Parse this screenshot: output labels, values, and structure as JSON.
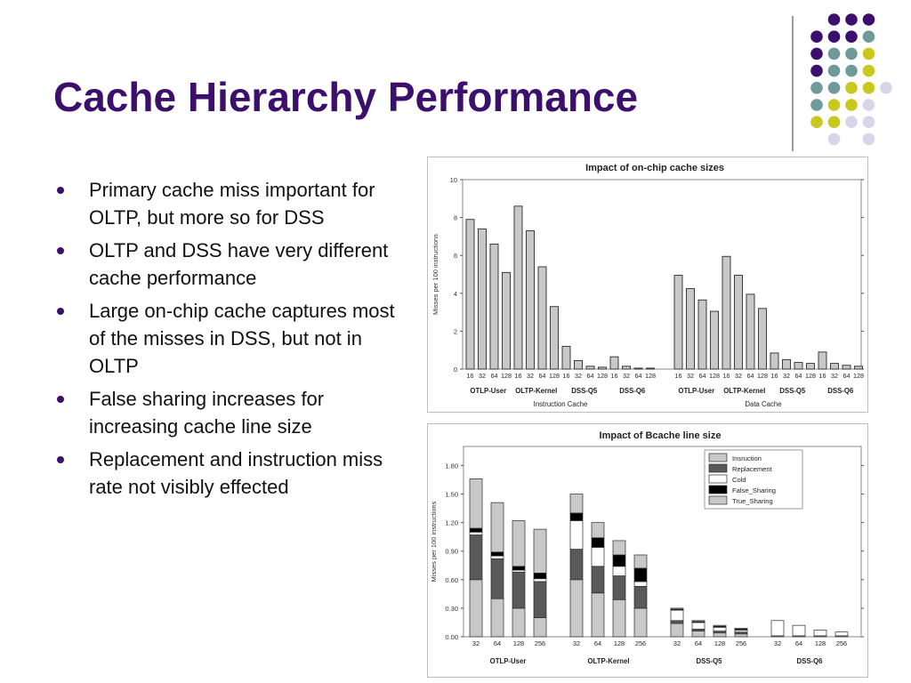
{
  "slide": {
    "title": "Cache Hierarchy Performance",
    "bullets": [
      "Primary cache miss important for OLTP, but more so for DSS",
      "OLTP and DSS have very different cache performance",
      "Large on-chip cache captures most of the misses in DSS, but not in OLTP",
      "False sharing increases for increasing cache line size",
      "Replacement and instruction miss rate not visibly effected"
    ],
    "colors": {
      "title": "#3b0f6b",
      "dot_purple": "#3b0f6b",
      "dot_teal": "#6e9a9a",
      "dot_yellow": "#c8c81e",
      "dot_lavender": "#d6d6e8"
    }
  },
  "chart_data": [
    {
      "type": "bar",
      "title": "Impact of on-chip cache sizes",
      "ylabel": "Misses per 100 instructions",
      "ylim": [
        0,
        10
      ],
      "yticks": [
        0,
        2,
        4,
        6,
        8,
        10
      ],
      "grid": false,
      "tick_labels": [
        "16",
        "32",
        "64",
        "128"
      ],
      "sections": [
        {
          "name": "Instruction Cache",
          "groups": [
            {
              "label": "OTLP-User",
              "values": [
                7.9,
                7.4,
                6.6,
                5.1
              ]
            },
            {
              "label": "OLTP-Kernel",
              "values": [
                8.6,
                7.3,
                5.4,
                3.3
              ]
            },
            {
              "label": "DSS-Q5",
              "values": [
                1.2,
                0.45,
                0.15,
                0.1
              ]
            },
            {
              "label": "DSS-Q6",
              "values": [
                0.65,
                0.15,
                0.05,
                0.05
              ]
            }
          ]
        },
        {
          "name": "Data Cache",
          "groups": [
            {
              "label": "OTLP-User",
              "values": [
                4.95,
                4.25,
                3.65,
                3.05
              ]
            },
            {
              "label": "OLTP-Kernel",
              "values": [
                5.95,
                4.95,
                3.95,
                3.2
              ]
            },
            {
              "label": "DSS-Q5",
              "values": [
                0.85,
                0.5,
                0.35,
                0.3
              ]
            },
            {
              "label": "DSS-Q6",
              "values": [
                0.9,
                0.3,
                0.2,
                0.15
              ]
            }
          ]
        }
      ]
    },
    {
      "type": "bar",
      "stacked": true,
      "title": "Impact of Bcache line size",
      "ylabel": "Misses per 100 instructions",
      "ylim": [
        0,
        2.0
      ],
      "yticks": [
        "0.00",
        "0.30",
        "0.60",
        "0.90",
        "1.20",
        "1.50",
        "1.80"
      ],
      "grid": false,
      "legend_position": "top-right",
      "tick_labels": [
        "32",
        "64",
        "128",
        "256"
      ],
      "series": [
        {
          "name": "Insruction",
          "color": "#c8c8c8"
        },
        {
          "name": "Replacement",
          "color": "#595959"
        },
        {
          "name": "Cold",
          "color": "#ffffff"
        },
        {
          "name": "False_Sharing",
          "color": "#000000"
        },
        {
          "name": "True_Sharing",
          "color": "#c8c8c8"
        }
      ],
      "groups": [
        {
          "label": "OTLP-User",
          "bars": [
            [
              0.6,
              0.47,
              0.03,
              0.04,
              0.52
            ],
            [
              0.4,
              0.42,
              0.03,
              0.04,
              0.52
            ],
            [
              0.3,
              0.38,
              0.02,
              0.04,
              0.48
            ],
            [
              0.2,
              0.38,
              0.03,
              0.06,
              0.46
            ]
          ]
        },
        {
          "label": "OLTP-Kernel",
          "bars": [
            [
              0.6,
              0.32,
              0.3,
              0.08,
              0.2
            ],
            [
              0.46,
              0.28,
              0.2,
              0.1,
              0.16
            ],
            [
              0.39,
              0.25,
              0.1,
              0.12,
              0.15
            ],
            [
              0.3,
              0.23,
              0.05,
              0.14,
              0.14
            ]
          ]
        },
        {
          "label": "DSS-Q5",
          "bars": [
            [
              0.14,
              0.03,
              0.11,
              0.01,
              0.01
            ],
            [
              0.06,
              0.02,
              0.07,
              0.01,
              0.01
            ],
            [
              0.04,
              0.02,
              0.04,
              0.01,
              0.01
            ],
            [
              0.03,
              0.02,
              0.02,
              0.01,
              0.01
            ]
          ]
        },
        {
          "label": "DSS-Q6",
          "bars": [
            [
              0.01,
              0.0,
              0.16,
              0.0,
              0.0
            ],
            [
              0.01,
              0.0,
              0.11,
              0.0,
              0.0
            ],
            [
              0.01,
              0.0,
              0.06,
              0.0,
              0.0
            ],
            [
              0.01,
              0.0,
              0.04,
              0.0,
              0.0
            ]
          ]
        }
      ]
    }
  ]
}
